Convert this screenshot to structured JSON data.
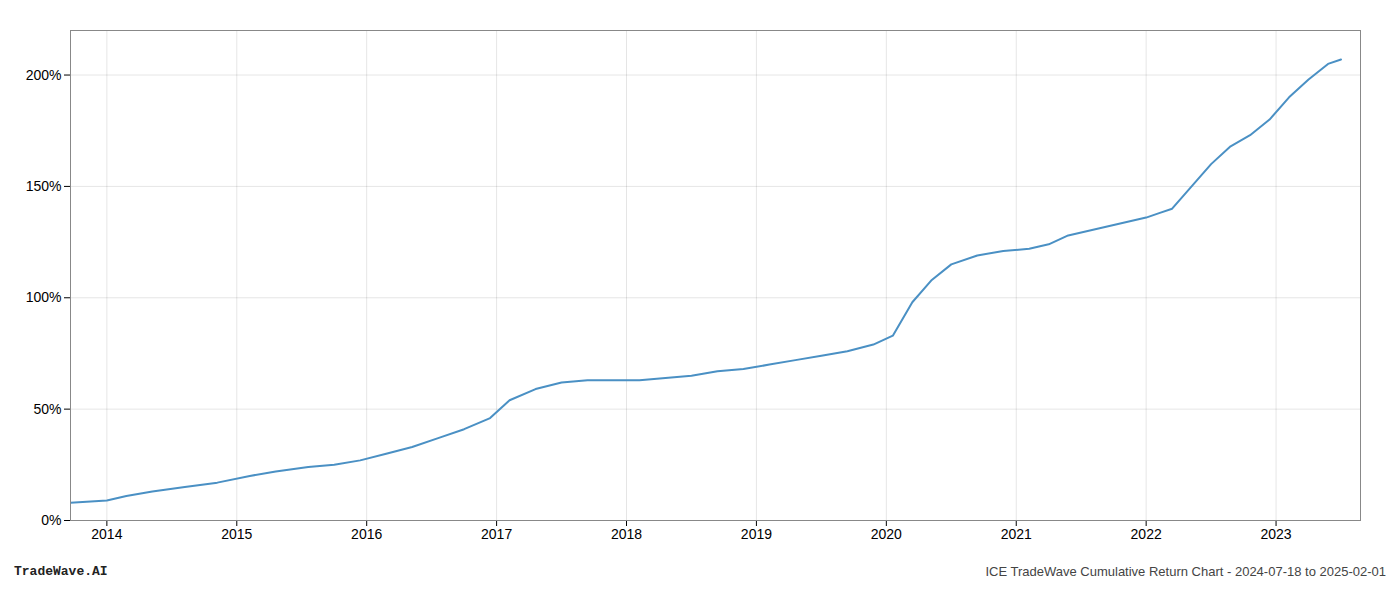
{
  "chart_data": {
    "type": "line",
    "annotations": [
      "TradeWave.AI",
      "ICE TradeWave Cumulative Return Chart - 2024-07-18 to 2025-02-01"
    ],
    "x": [
      2013.72,
      2014.0,
      2014.15,
      2014.35,
      2014.6,
      2014.85,
      2015.1,
      2015.3,
      2015.55,
      2015.75,
      2015.95,
      2016.15,
      2016.35,
      2016.55,
      2016.75,
      2016.95,
      2017.1,
      2017.3,
      2017.5,
      2017.7,
      2017.9,
      2018.1,
      2018.3,
      2018.5,
      2018.7,
      2018.9,
      2019.1,
      2019.3,
      2019.5,
      2019.7,
      2019.9,
      2020.05,
      2020.2,
      2020.35,
      2020.5,
      2020.7,
      2020.9,
      2021.1,
      2021.25,
      2021.4,
      2021.55,
      2021.7,
      2021.85,
      2022.0,
      2022.1,
      2022.2,
      2022.35,
      2022.5,
      2022.65,
      2022.8,
      2022.95,
      2023.1,
      2023.25,
      2023.4,
      2023.5
    ],
    "values": [
      8,
      9,
      11,
      13,
      15,
      17,
      20,
      22,
      24,
      25,
      27,
      30,
      33,
      37,
      41,
      46,
      54,
      59,
      62,
      63,
      63,
      63,
      64,
      65,
      67,
      68,
      70,
      72,
      74,
      76,
      79,
      83,
      98,
      108,
      115,
      119,
      121,
      122,
      124,
      128,
      130,
      132,
      134,
      136,
      138,
      140,
      150,
      160,
      168,
      173,
      180,
      190,
      198,
      205,
      207
    ],
    "color": "#4a90c4",
    "xlim": [
      2013.72,
      2023.65
    ],
    "xticks": [
      2014,
      2015,
      2016,
      2017,
      2018,
      2019,
      2020,
      2021,
      2022,
      2023
    ],
    "ylim": [
      0,
      220
    ],
    "yticks": [
      {
        "value": 0,
        "label": "0%"
      },
      {
        "value": 50,
        "label": "50%"
      },
      {
        "value": 100,
        "label": "100%"
      },
      {
        "value": 150,
        "label": "150%"
      },
      {
        "value": 200,
        "label": "200%"
      }
    ],
    "grid": true
  }
}
